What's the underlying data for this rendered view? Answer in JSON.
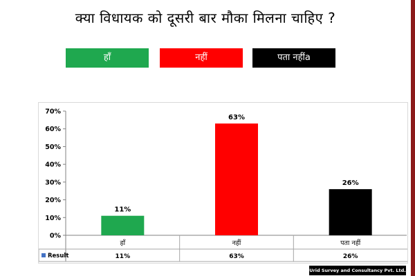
{
  "title": "क्या विधायक को दूसरी बार मौका मिलना चाहिए ?",
  "legend": [
    {
      "label": "हाँ",
      "color": "#1fa84f"
    },
    {
      "label": "नहीं",
      "color": "#ff0000"
    },
    {
      "label": "पता नहींa",
      "color": "#000000"
    }
  ],
  "chart_data": {
    "type": "bar",
    "categories": [
      "हॉं",
      "नहीं",
      "पता नहीं"
    ],
    "values": [
      11,
      63,
      26
    ],
    "value_labels": [
      "11%",
      "63%",
      "26%"
    ],
    "colors": [
      "#1fa84f",
      "#ff0000",
      "#000000"
    ],
    "ylim": [
      0,
      70
    ],
    "yticks": [
      "0%",
      "10%",
      "20%",
      "30%",
      "40%",
      "50%",
      "60%",
      "70%"
    ],
    "grid": false,
    "table": {
      "legend_label": "Result",
      "legend_color": "#4472c4",
      "values": [
        "11%",
        "63%",
        "26%"
      ]
    }
  },
  "footer": "Urid Survey and Consultancy Pvt. Ltd."
}
